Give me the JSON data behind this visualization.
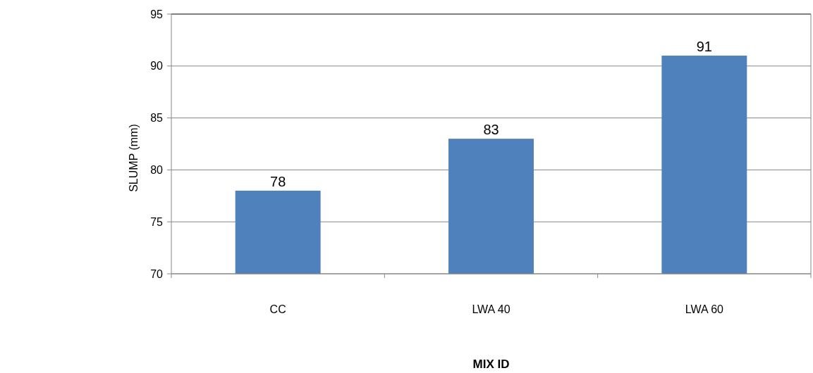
{
  "chart_data": {
    "type": "bar",
    "xlabel": "MIX ID",
    "ylabel": "SLUMP (mm)",
    "categories": [
      "CC",
      "LWA 40",
      "LWA 60"
    ],
    "values": [
      78,
      83,
      91
    ],
    "color": "#4f81bd",
    "ylim": [
      70,
      95
    ],
    "yticks": [
      70,
      75,
      80,
      85,
      90,
      95
    ],
    "grid": "y",
    "data_labels": true
  }
}
